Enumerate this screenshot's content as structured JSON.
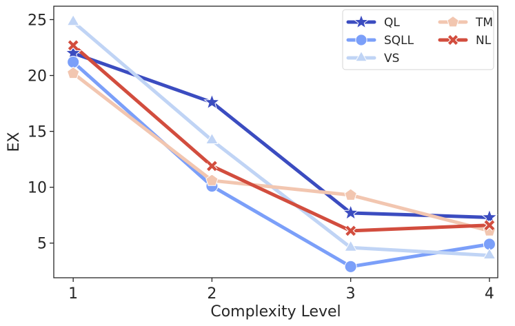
{
  "chart_data": {
    "type": "line",
    "title": "",
    "xlabel": "Complexity Level",
    "ylabel": "EX",
    "x": [
      1,
      2,
      3,
      4
    ],
    "x_tick_labels": [
      "1",
      "2",
      "3",
      "4"
    ],
    "xlim": [
      0.86,
      4.06
    ],
    "ylim": [
      1.9,
      26.2
    ],
    "y_ticks": [
      5,
      10,
      15,
      20,
      25
    ],
    "y_tick_labels": [
      "5",
      "10",
      "15",
      "20",
      "25"
    ],
    "grid": false,
    "legend_position": "top-right",
    "series": [
      {
        "name": "QL",
        "values": [
          22.0,
          17.6,
          7.7,
          7.3
        ],
        "marker": "star",
        "color": "#3b4cc0"
      },
      {
        "name": "SQLL",
        "values": [
          21.2,
          10.1,
          2.9,
          4.9
        ],
        "marker": "circle",
        "color": "#7b9ff9"
      },
      {
        "name": "VS",
        "values": [
          24.8,
          14.2,
          4.6,
          3.9
        ],
        "marker": "triangle",
        "color": "#c0d4f5"
      },
      {
        "name": "TM",
        "values": [
          20.2,
          10.6,
          9.3,
          6.1
        ],
        "marker": "pentagon",
        "color": "#f2c6b0"
      },
      {
        "name": "NL",
        "values": [
          22.7,
          11.9,
          6.1,
          6.6
        ],
        "marker": "x",
        "color": "#d24d3e"
      }
    ]
  }
}
